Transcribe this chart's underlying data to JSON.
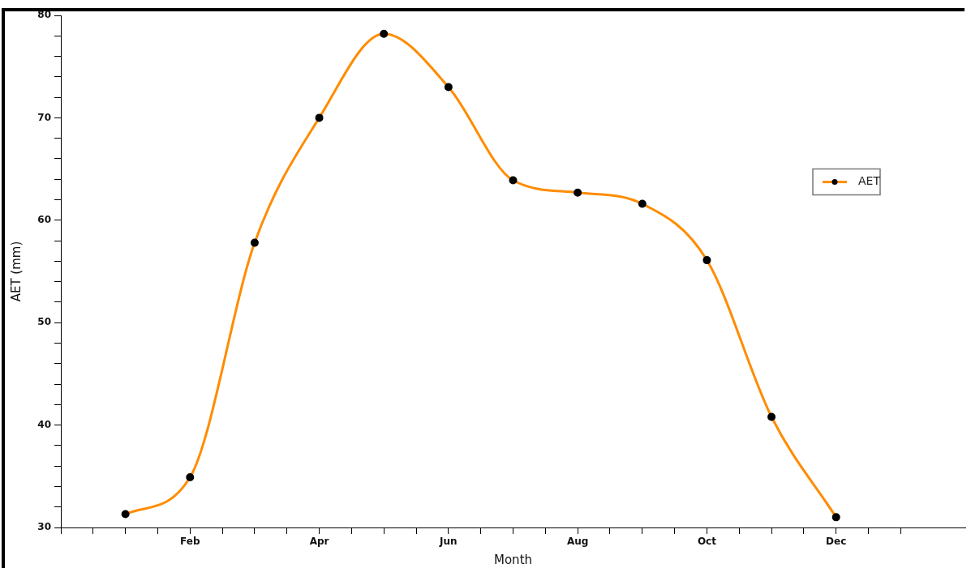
{
  "chart_data": {
    "type": "line",
    "xlabel": "Month",
    "ylabel": "AET (mm)",
    "categories": [
      null,
      "Feb",
      null,
      "Apr",
      null,
      "Jun",
      null,
      "Aug",
      null,
      "Oct",
      null,
      "Dec"
    ],
    "series": [
      {
        "name": "AET",
        "color": "#ff8c00",
        "values": [
          31.3,
          34.9,
          57.8,
          70.0,
          78.2,
          73.0,
          63.9,
          62.7,
          61.6,
          56.1,
          40.8,
          31.0
        ]
      }
    ],
    "ylim": [
      30,
      80
    ],
    "yticks": [
      30,
      40,
      50,
      60,
      70,
      80
    ],
    "grid": false,
    "legend": "right",
    "marker": "circle",
    "line_style": "solid"
  }
}
